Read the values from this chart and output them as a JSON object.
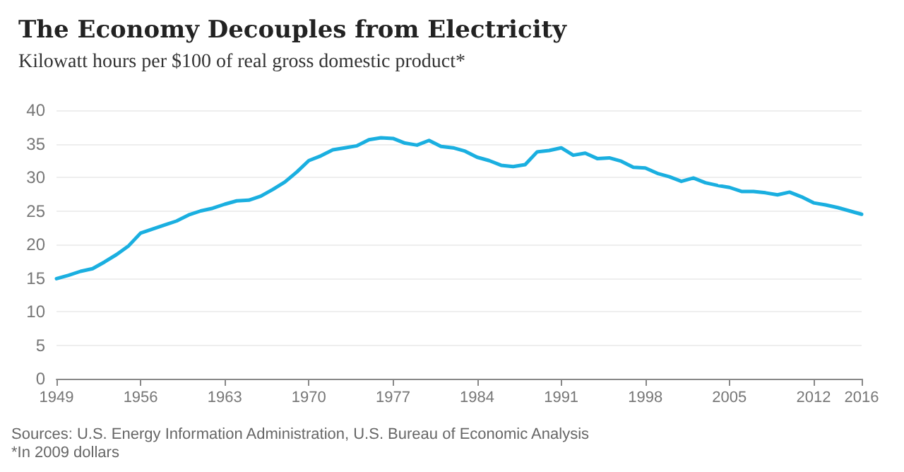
{
  "chart_data": {
    "type": "line",
    "title": "The Economy Decouples from Electricity",
    "subtitle": "Kilowatt hours per $100 of real gross domestic product*",
    "x": [
      1949,
      1950,
      1951,
      1952,
      1953,
      1954,
      1955,
      1956,
      1957,
      1958,
      1959,
      1960,
      1961,
      1962,
      1963,
      1964,
      1965,
      1966,
      1967,
      1968,
      1969,
      1970,
      1971,
      1972,
      1973,
      1974,
      1975,
      1976,
      1977,
      1978,
      1979,
      1980,
      1981,
      1982,
      1983,
      1984,
      1985,
      1986,
      1987,
      1988,
      1989,
      1990,
      1991,
      1992,
      1993,
      1994,
      1995,
      1996,
      1997,
      1998,
      1999,
      2000,
      2001,
      2002,
      2003,
      2004,
      2005,
      2006,
      2007,
      2008,
      2009,
      2010,
      2011,
      2012,
      2013,
      2014,
      2015,
      2016
    ],
    "series": [
      {
        "color": "#1aafe0",
        "values": [
          14.9,
          15.4,
          16.0,
          16.4,
          17.4,
          18.5,
          19.8,
          21.7,
          22.3,
          22.9,
          23.5,
          24.4,
          25.0,
          25.4,
          26.0,
          26.5,
          26.6,
          27.2,
          28.2,
          29.3,
          30.8,
          32.5,
          33.2,
          34.1,
          34.4,
          34.7,
          35.6,
          35.9,
          35.8,
          35.1,
          34.8,
          35.5,
          34.6,
          34.4,
          33.9,
          33.0,
          32.5,
          31.8,
          31.6,
          31.9,
          33.8,
          34.0,
          34.4,
          33.3,
          33.6,
          32.8,
          32.9,
          32.4,
          31.5,
          31.4,
          30.6,
          30.1,
          29.4,
          29.9,
          29.2,
          28.8,
          28.5,
          27.9,
          27.9,
          27.7,
          27.4,
          27.8,
          27.1,
          26.2,
          25.9,
          25.5,
          25.0,
          24.5
        ]
      }
    ],
    "xlim": [
      1949,
      2016
    ],
    "xticks": [
      1949,
      1956,
      1963,
      1970,
      1977,
      1984,
      1991,
      1998,
      2005,
      2012,
      2016
    ],
    "ylim": [
      0,
      40
    ],
    "yticks": [
      0,
      5,
      10,
      15,
      20,
      25,
      30,
      35,
      40
    ],
    "grid": "y",
    "marker": "none",
    "line_style": "solid",
    "annotations": [
      "Sources: U.S. Energy Information Administration, U.S. Bureau of Economic Analysis",
      "*In 2009 dollars"
    ]
  }
}
